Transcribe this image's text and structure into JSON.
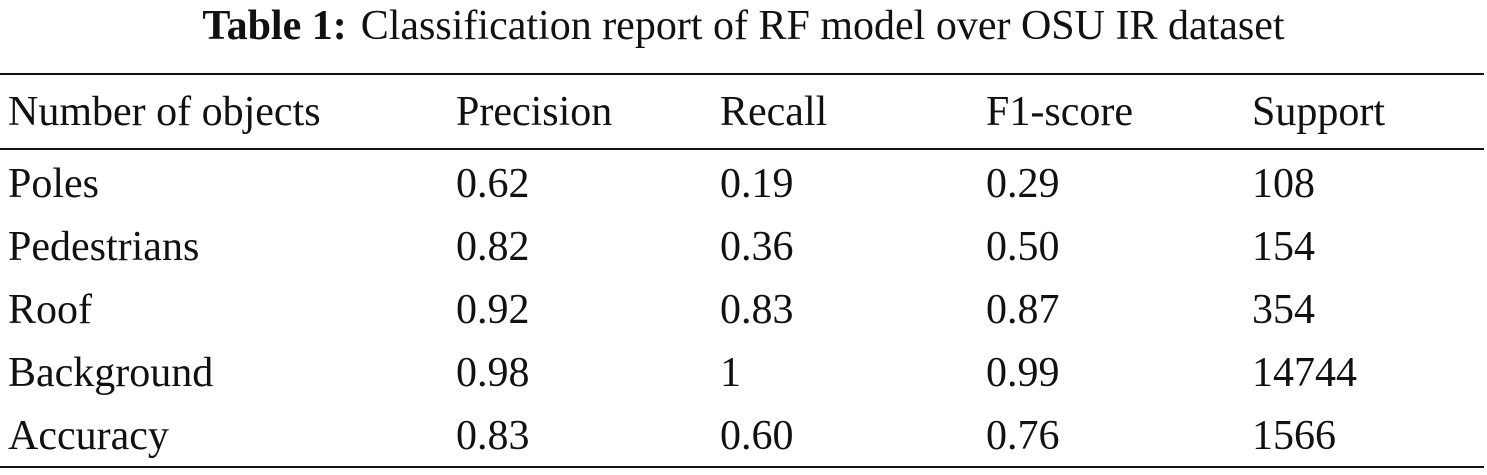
{
  "caption": {
    "label": "Table 1:",
    "text": "Classification report of RF model over OSU IR dataset"
  },
  "table": {
    "headers": [
      "Number of objects",
      "Precision",
      "Recall",
      "F1-score",
      "Support"
    ],
    "rows": [
      [
        "Poles",
        "0.62",
        "0.19",
        "0.29",
        "108"
      ],
      [
        "Pedestrians",
        "0.82",
        "0.36",
        "0.50",
        "154"
      ],
      [
        "Roof",
        "0.92",
        "0.83",
        "0.87",
        "354"
      ],
      [
        "Background",
        "0.98",
        "1",
        "0.99",
        "14744"
      ],
      [
        "Accuracy",
        "0.83",
        "0.60",
        "0.76",
        "1566"
      ]
    ]
  }
}
